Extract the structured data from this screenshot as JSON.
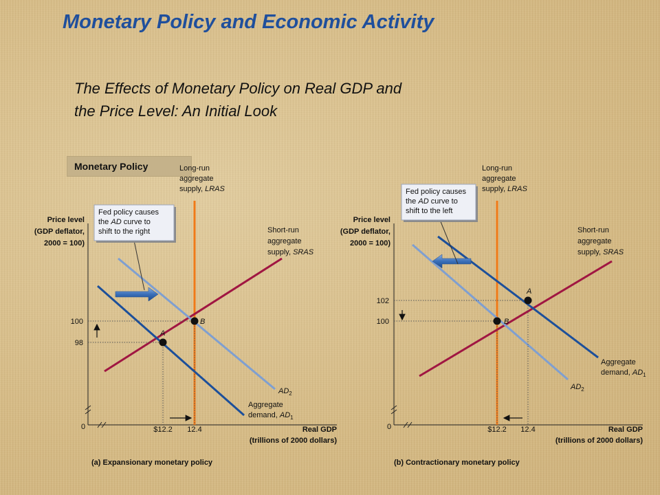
{
  "slide": {
    "title": "Monetary Policy and Economic Activity",
    "subtitle_line1": "The Effects of Monetary Policy on Real GDP and",
    "subtitle_line2": "the Price Level:  An Initial Look",
    "tag": "Monetary Policy"
  },
  "colors": {
    "title": "#1f4f9c",
    "lras": "#f07a18",
    "sras": "#a01642",
    "ad_dark": "#1c4f9a",
    "ad_light": "#7f9fd0",
    "arrow": "#2f67b0"
  },
  "chart_data": [
    {
      "type": "line",
      "caption": "(a) Expansionary monetary policy",
      "ylabel_lines": [
        "Price level",
        "(GDP deflator,",
        "2000 = 100)"
      ],
      "xlabel_lines": [
        "Real GDP",
        "(trillions of 2000 dollars)"
      ],
      "origin_label": "0",
      "xticks": [
        "$12.2",
        "12.4"
      ],
      "yticks": [
        "98",
        "100"
      ],
      "lras": {
        "x": 12.4,
        "label_lines": [
          "Long-run",
          "aggregate",
          "supply, LRAS"
        ]
      },
      "sras_label_lines": [
        "Short-run",
        "aggregate",
        "supply, SRAS"
      ],
      "ad1_label_lines": [
        "Aggregate",
        "demand, AD1"
      ],
      "ad2_label": "AD2",
      "points": [
        {
          "label": "A",
          "x": 12.2,
          "y": 98
        },
        {
          "label": "B",
          "x": 12.4,
          "y": 100
        }
      ],
      "callout_lines": [
        "Fed policy causes",
        "the AD curve to",
        "shift to the right"
      ]
    },
    {
      "type": "line",
      "caption": "(b) Contractionary monetary policy",
      "ylabel_lines": [
        "Price level",
        "(GDP deflator,",
        "2000 = 100)"
      ],
      "xlabel_lines": [
        "Real GDP",
        "(trillions of 2000 dollars)"
      ],
      "origin_label": "0",
      "xticks": [
        "$12.2",
        "12.4"
      ],
      "yticks": [
        "100",
        "102"
      ],
      "lras": {
        "x": 12.2,
        "label_lines": [
          "Long-run",
          "aggregate",
          "supply, LRAS"
        ]
      },
      "sras_label_lines": [
        "Short-run",
        "aggregate",
        "supply, SRAS"
      ],
      "ad1_label_lines": [
        "Aggregate",
        "demand, AD1"
      ],
      "ad2_label": "AD2",
      "points": [
        {
          "label": "A",
          "x": 12.4,
          "y": 102
        },
        {
          "label": "B",
          "x": 12.2,
          "y": 100
        }
      ],
      "callout_lines": [
        "Fed policy causes",
        "the AD curve to",
        "shift to the left"
      ]
    }
  ]
}
